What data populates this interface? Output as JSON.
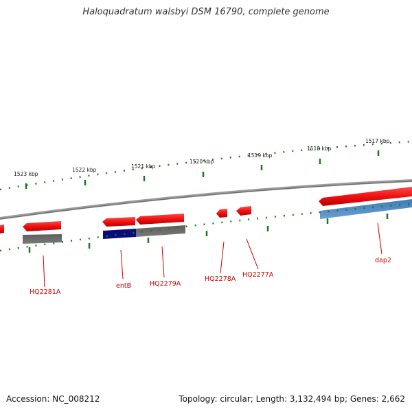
{
  "title": "Haloquadratum walsbyi DSM 16790, complete genome",
  "footer": {
    "accession": "Accession: NC_008212",
    "topology": "Topology: circular; Length: 3,132,494 bp; Genes: 2,662"
  },
  "scale": {
    "ticks": [
      "1523 kbp",
      "1522 kbp",
      "1521 kbp",
      "1520 kbp",
      "1519 kbp",
      "1518 kbp",
      "1517 kbp"
    ]
  },
  "genes": [
    "HQ2281A",
    "entB",
    "HQ2279A",
    "HQ2278A",
    "HQ2277A",
    "dap2"
  ],
  "colors": {
    "cds": "#ee1111",
    "grey_feature": "#6b6b6b",
    "navy_feature": "#0a0a7a",
    "blue_feature": "#4a86c0",
    "backbone": "#8a8a8a",
    "ticks": "#1a7a1a",
    "label": "#cc0000"
  }
}
